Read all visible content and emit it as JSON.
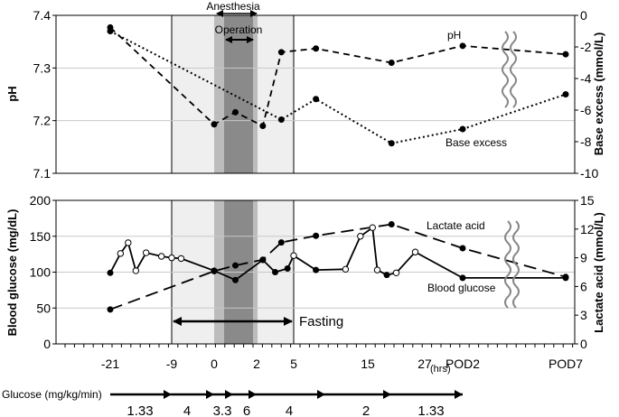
{
  "chart_data": [
    {
      "type": "line",
      "title": "",
      "ylabel": "pH",
      "y2label": "Base excess (mmol/L)",
      "ylim": [
        7.1,
        7.4
      ],
      "y2lim": [
        -10,
        0
      ],
      "yticks": [
        "7.1",
        "7.2",
        "7.3",
        "7.4"
      ],
      "y2ticks": [
        "-10",
        "-8",
        "-6",
        "-4",
        "-2",
        "0"
      ],
      "grid": "horizontal",
      "series": [
        {
          "name": "pH",
          "axis": "left",
          "style": "dashed",
          "points": [
            {
              "x": "-21",
              "y": 7.377
            },
            {
              "x": "0",
              "y": 7.193
            },
            {
              "x": "1",
              "y": 7.216
            },
            {
              "x": "2.5",
              "y": 7.19
            },
            {
              "x": "4",
              "y": 7.33
            },
            {
              "x": "8",
              "y": 7.337
            },
            {
              "x": "20",
              "y": 7.31
            },
            {
              "x": "POD2",
              "y": 7.342
            },
            {
              "x": "POD7",
              "y": 7.326
            }
          ]
        },
        {
          "name": "Base excess",
          "axis": "right",
          "style": "dotted",
          "points": [
            {
              "x": "-21",
              "y": -1.0
            },
            {
              "x": "4",
              "y": -6.6
            },
            {
              "x": "8",
              "y": -5.3
            },
            {
              "x": "20",
              "y": -8.1
            },
            {
              "x": "POD2",
              "y": -7.2
            },
            {
              "x": "POD7",
              "y": -5.0
            }
          ]
        }
      ]
    },
    {
      "type": "line",
      "title": "",
      "ylabel": "Blood glucose (mg/dL)",
      "y2label": "Lactate acid  (mmol/L)",
      "ylim": [
        0,
        200
      ],
      "y2lim": [
        0,
        15
      ],
      "yticks": [
        "0",
        "50",
        "100",
        "150",
        "200"
      ],
      "y2ticks": [
        "0",
        "3",
        "6",
        "9",
        "12",
        "15"
      ],
      "grid": "horizontal",
      "series": [
        {
          "name": "Blood glucose",
          "axis": "left",
          "style": "solid",
          "points": [
            {
              "x": "-21",
              "y": 99,
              "marker": "filled"
            },
            {
              "x": "-19",
              "y": 126,
              "marker": "open"
            },
            {
              "x": "-17.5",
              "y": 141,
              "marker": "open"
            },
            {
              "x": "-16",
              "y": 102,
              "marker": "open"
            },
            {
              "x": "-14",
              "y": 127,
              "marker": "open"
            },
            {
              "x": "-11",
              "y": 122,
              "marker": "open"
            },
            {
              "x": "-9",
              "y": 120,
              "marker": "open"
            },
            {
              "x": "-7",
              "y": 119,
              "marker": "open"
            },
            {
              "x": "0",
              "y": 102,
              "marker": "filled"
            },
            {
              "x": "1",
              "y": 89,
              "marker": "filled"
            },
            {
              "x": "2.5",
              "y": 117,
              "marker": "filled"
            },
            {
              "x": "3.5",
              "y": 100,
              "marker": "filled"
            },
            {
              "x": "4.5",
              "y": 105,
              "marker": "filled"
            },
            {
              "x": "5",
              "y": 123,
              "marker": "open"
            },
            {
              "x": "8",
              "y": 103,
              "marker": "filled"
            },
            {
              "x": "12",
              "y": 104,
              "marker": "open"
            },
            {
              "x": "14",
              "y": 150,
              "marker": "open"
            },
            {
              "x": "16",
              "y": 162,
              "marker": "open"
            },
            {
              "x": "17",
              "y": 103,
              "marker": "open"
            },
            {
              "x": "19",
              "y": 96,
              "marker": "filled"
            },
            {
              "x": "21",
              "y": 99,
              "marker": "open"
            },
            {
              "x": "25",
              "y": 128,
              "marker": "open"
            },
            {
              "x": "POD2",
              "y": 92,
              "marker": "filled"
            },
            {
              "x": "POD7",
              "y": 92,
              "marker": "filled"
            }
          ]
        },
        {
          "name": "Lactate acid",
          "axis": "right",
          "style": "long-dashed",
          "points": [
            {
              "x": "-21",
              "y": 3.6
            },
            {
              "x": "0",
              "y": 7.6
            },
            {
              "x": "1",
              "y": 8.2
            },
            {
              "x": "2.5",
              "y": 8.8
            },
            {
              "x": "4",
              "y": 10.6
            },
            {
              "x": "8",
              "y": 11.3
            },
            {
              "x": "20",
              "y": 12.5
            },
            {
              "x": "POD2",
              "y": 10.0
            },
            {
              "x": "POD7",
              "y": 7.0
            }
          ]
        }
      ]
    }
  ],
  "xticks": [
    "-21",
    "-9",
    "0",
    "2",
    "5",
    "15",
    "27",
    "POD2",
    "POD7"
  ],
  "xunit": "(hrs)",
  "annotations": {
    "anesthesia": "Anesthesia",
    "operation": "Operation",
    "fasting": "Fasting",
    "ph_label": "pH",
    "be_label": "Base excess",
    "lactate_label": "Lactate acid",
    "glucose_label": "Blood glucose"
  },
  "glucose_infusion": {
    "label": "Glucose (mg/kg/min)",
    "rates": [
      "1.33",
      "4",
      "3.3",
      "6",
      "4",
      "2",
      "1.33"
    ]
  },
  "colors": {
    "anesthesia_shade": "#efefef",
    "operation_light": "#bcbcbc",
    "operation_dark": "#8a8a8a",
    "grid": "#c8c8c8",
    "break_mark": "#888888"
  }
}
